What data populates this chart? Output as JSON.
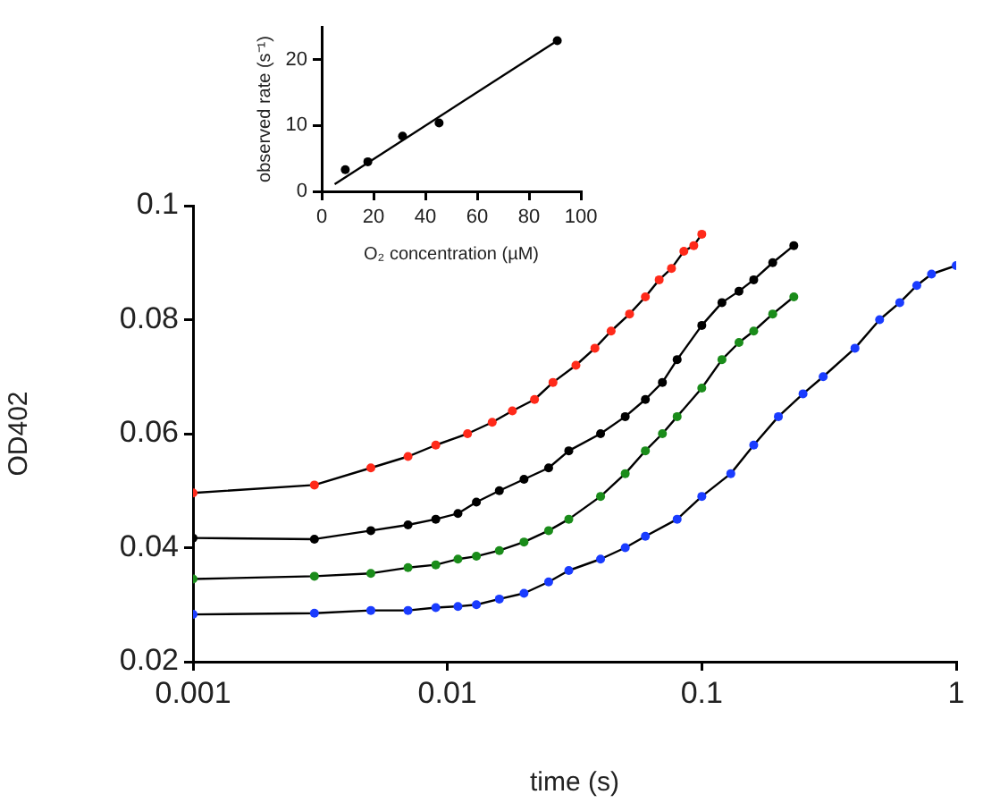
{
  "chart_data": [
    {
      "type": "scatter",
      "xlabel": "time (s)",
      "ylabel": "OD402",
      "log": "x",
      "xlim": [
        0.001,
        1
      ],
      "xticks": [
        0.001,
        0.01,
        0.1,
        1
      ],
      "ylim": [
        0.02,
        0.1
      ],
      "yticks": [
        0.02,
        0.04,
        0.06,
        0.08,
        0.1
      ],
      "grid": false,
      "legend": false,
      "marker": "circle",
      "series": [
        {
          "color": "#ff2a1a",
          "x": [
            0.001,
            0.003,
            0.005,
            0.007,
            0.009,
            0.012,
            0.015,
            0.018,
            0.022,
            0.026,
            0.032,
            0.038,
            0.044,
            0.052,
            0.06,
            0.068,
            0.076,
            0.085,
            0.093,
            0.1
          ],
          "values": [
            0.0496,
            0.051,
            0.054,
            0.056,
            0.058,
            0.06,
            0.062,
            0.064,
            0.066,
            0.069,
            0.072,
            0.075,
            0.078,
            0.081,
            0.084,
            0.087,
            0.089,
            0.092,
            0.093,
            0.095
          ]
        },
        {
          "color": "#000000",
          "x": [
            0.001,
            0.003,
            0.005,
            0.007,
            0.009,
            0.011,
            0.013,
            0.016,
            0.02,
            0.025,
            0.03,
            0.04,
            0.05,
            0.06,
            0.07,
            0.08,
            0.1,
            0.12,
            0.14,
            0.16,
            0.19,
            0.23
          ],
          "values": [
            0.0417,
            0.0415,
            0.043,
            0.044,
            0.045,
            0.046,
            0.048,
            0.05,
            0.052,
            0.054,
            0.057,
            0.06,
            0.063,
            0.066,
            0.069,
            0.073,
            0.079,
            0.083,
            0.085,
            0.087,
            0.09,
            0.093
          ]
        },
        {
          "color": "#1a8c1a",
          "x": [
            0.001,
            0.003,
            0.005,
            0.007,
            0.009,
            0.011,
            0.013,
            0.016,
            0.02,
            0.025,
            0.03,
            0.04,
            0.05,
            0.06,
            0.07,
            0.08,
            0.1,
            0.12,
            0.14,
            0.16,
            0.19,
            0.23
          ],
          "values": [
            0.0345,
            0.035,
            0.0355,
            0.0365,
            0.037,
            0.038,
            0.0385,
            0.0395,
            0.041,
            0.043,
            0.045,
            0.049,
            0.053,
            0.057,
            0.06,
            0.063,
            0.068,
            0.073,
            0.076,
            0.078,
            0.081,
            0.084
          ]
        },
        {
          "color": "#1a3cff",
          "x": [
            0.001,
            0.003,
            0.005,
            0.007,
            0.009,
            0.011,
            0.013,
            0.016,
            0.02,
            0.025,
            0.03,
            0.04,
            0.05,
            0.06,
            0.08,
            0.1,
            0.13,
            0.16,
            0.2,
            0.25,
            0.3,
            0.4,
            0.5,
            0.6,
            0.7,
            0.8,
            1
          ],
          "values": [
            0.0283,
            0.0285,
            0.029,
            0.029,
            0.0295,
            0.0297,
            0.03,
            0.031,
            0.032,
            0.034,
            0.036,
            0.038,
            0.04,
            0.042,
            0.045,
            0.049,
            0.053,
            0.058,
            0.063,
            0.067,
            0.07,
            0.075,
            0.08,
            0.083,
            0.086,
            0.088,
            0.0895
          ]
        },
        {
          "type": "line",
          "marker": "none",
          "color": "#000000",
          "x": [
            0.001,
            0.003,
            0.005,
            0.007,
            0.009,
            0.012,
            0.015,
            0.018,
            0.022,
            0.026,
            0.032,
            0.038,
            0.044,
            0.052,
            0.06,
            0.068,
            0.076,
            0.085,
            0.093,
            0.1
          ],
          "values": [
            0.0496,
            0.051,
            0.054,
            0.056,
            0.058,
            0.06,
            0.062,
            0.064,
            0.066,
            0.069,
            0.072,
            0.075,
            0.078,
            0.081,
            0.084,
            0.087,
            0.089,
            0.092,
            0.093,
            0.095
          ]
        },
        {
          "type": "line",
          "marker": "none",
          "color": "#000000",
          "x": [
            0.001,
            0.003,
            0.005,
            0.007,
            0.009,
            0.011,
            0.013,
            0.016,
            0.02,
            0.025,
            0.03,
            0.04,
            0.05,
            0.06,
            0.07,
            0.08,
            0.1,
            0.12,
            0.14,
            0.16,
            0.19,
            0.23
          ],
          "values": [
            0.0417,
            0.0415,
            0.043,
            0.044,
            0.045,
            0.046,
            0.048,
            0.05,
            0.052,
            0.054,
            0.057,
            0.06,
            0.063,
            0.066,
            0.069,
            0.073,
            0.079,
            0.083,
            0.085,
            0.087,
            0.09,
            0.093
          ]
        },
        {
          "type": "line",
          "marker": "none",
          "color": "#000000",
          "x": [
            0.001,
            0.003,
            0.005,
            0.007,
            0.009,
            0.011,
            0.013,
            0.016,
            0.02,
            0.025,
            0.03,
            0.04,
            0.05,
            0.06,
            0.07,
            0.08,
            0.1,
            0.12,
            0.14,
            0.16,
            0.19,
            0.23
          ],
          "values": [
            0.0345,
            0.035,
            0.0355,
            0.0365,
            0.037,
            0.038,
            0.0385,
            0.0395,
            0.041,
            0.043,
            0.045,
            0.049,
            0.053,
            0.057,
            0.06,
            0.063,
            0.068,
            0.073,
            0.076,
            0.078,
            0.081,
            0.084
          ]
        },
        {
          "type": "line",
          "marker": "none",
          "color": "#000000",
          "x": [
            0.001,
            0.003,
            0.005,
            0.007,
            0.009,
            0.011,
            0.013,
            0.016,
            0.02,
            0.025,
            0.03,
            0.04,
            0.05,
            0.06,
            0.08,
            0.1,
            0.13,
            0.16,
            0.2,
            0.25,
            0.3,
            0.4,
            0.5,
            0.6,
            0.7,
            0.8,
            1
          ],
          "values": [
            0.0283,
            0.0285,
            0.029,
            0.029,
            0.0295,
            0.0297,
            0.03,
            0.031,
            0.032,
            0.034,
            0.036,
            0.038,
            0.04,
            0.042,
            0.045,
            0.049,
            0.053,
            0.058,
            0.063,
            0.067,
            0.07,
            0.075,
            0.08,
            0.083,
            0.086,
            0.088,
            0.0895
          ]
        }
      ]
    },
    {
      "type": "scatter",
      "xlabel": "O₂ concentration (µM)",
      "ylabel": "observed rate (s⁻¹)",
      "xlim": [
        0,
        100
      ],
      "xticks": [
        0,
        20,
        40,
        60,
        80,
        100
      ],
      "ylim": [
        0,
        25
      ],
      "yticks": [
        0,
        10,
        20
      ],
      "grid": false,
      "legend": false,
      "marker": "circle",
      "series": [
        {
          "color": "#000000",
          "x": [
            9.1,
            17.8,
            31.2,
            45.3,
            90.9
          ],
          "values": [
            3.3,
            4.5,
            8.4,
            10.4,
            22.9
          ]
        },
        {
          "type": "line",
          "marker": "none",
          "color": "#000000",
          "x": [
            5,
            90.9
          ],
          "values": [
            1.1,
            22.9
          ]
        }
      ]
    }
  ]
}
